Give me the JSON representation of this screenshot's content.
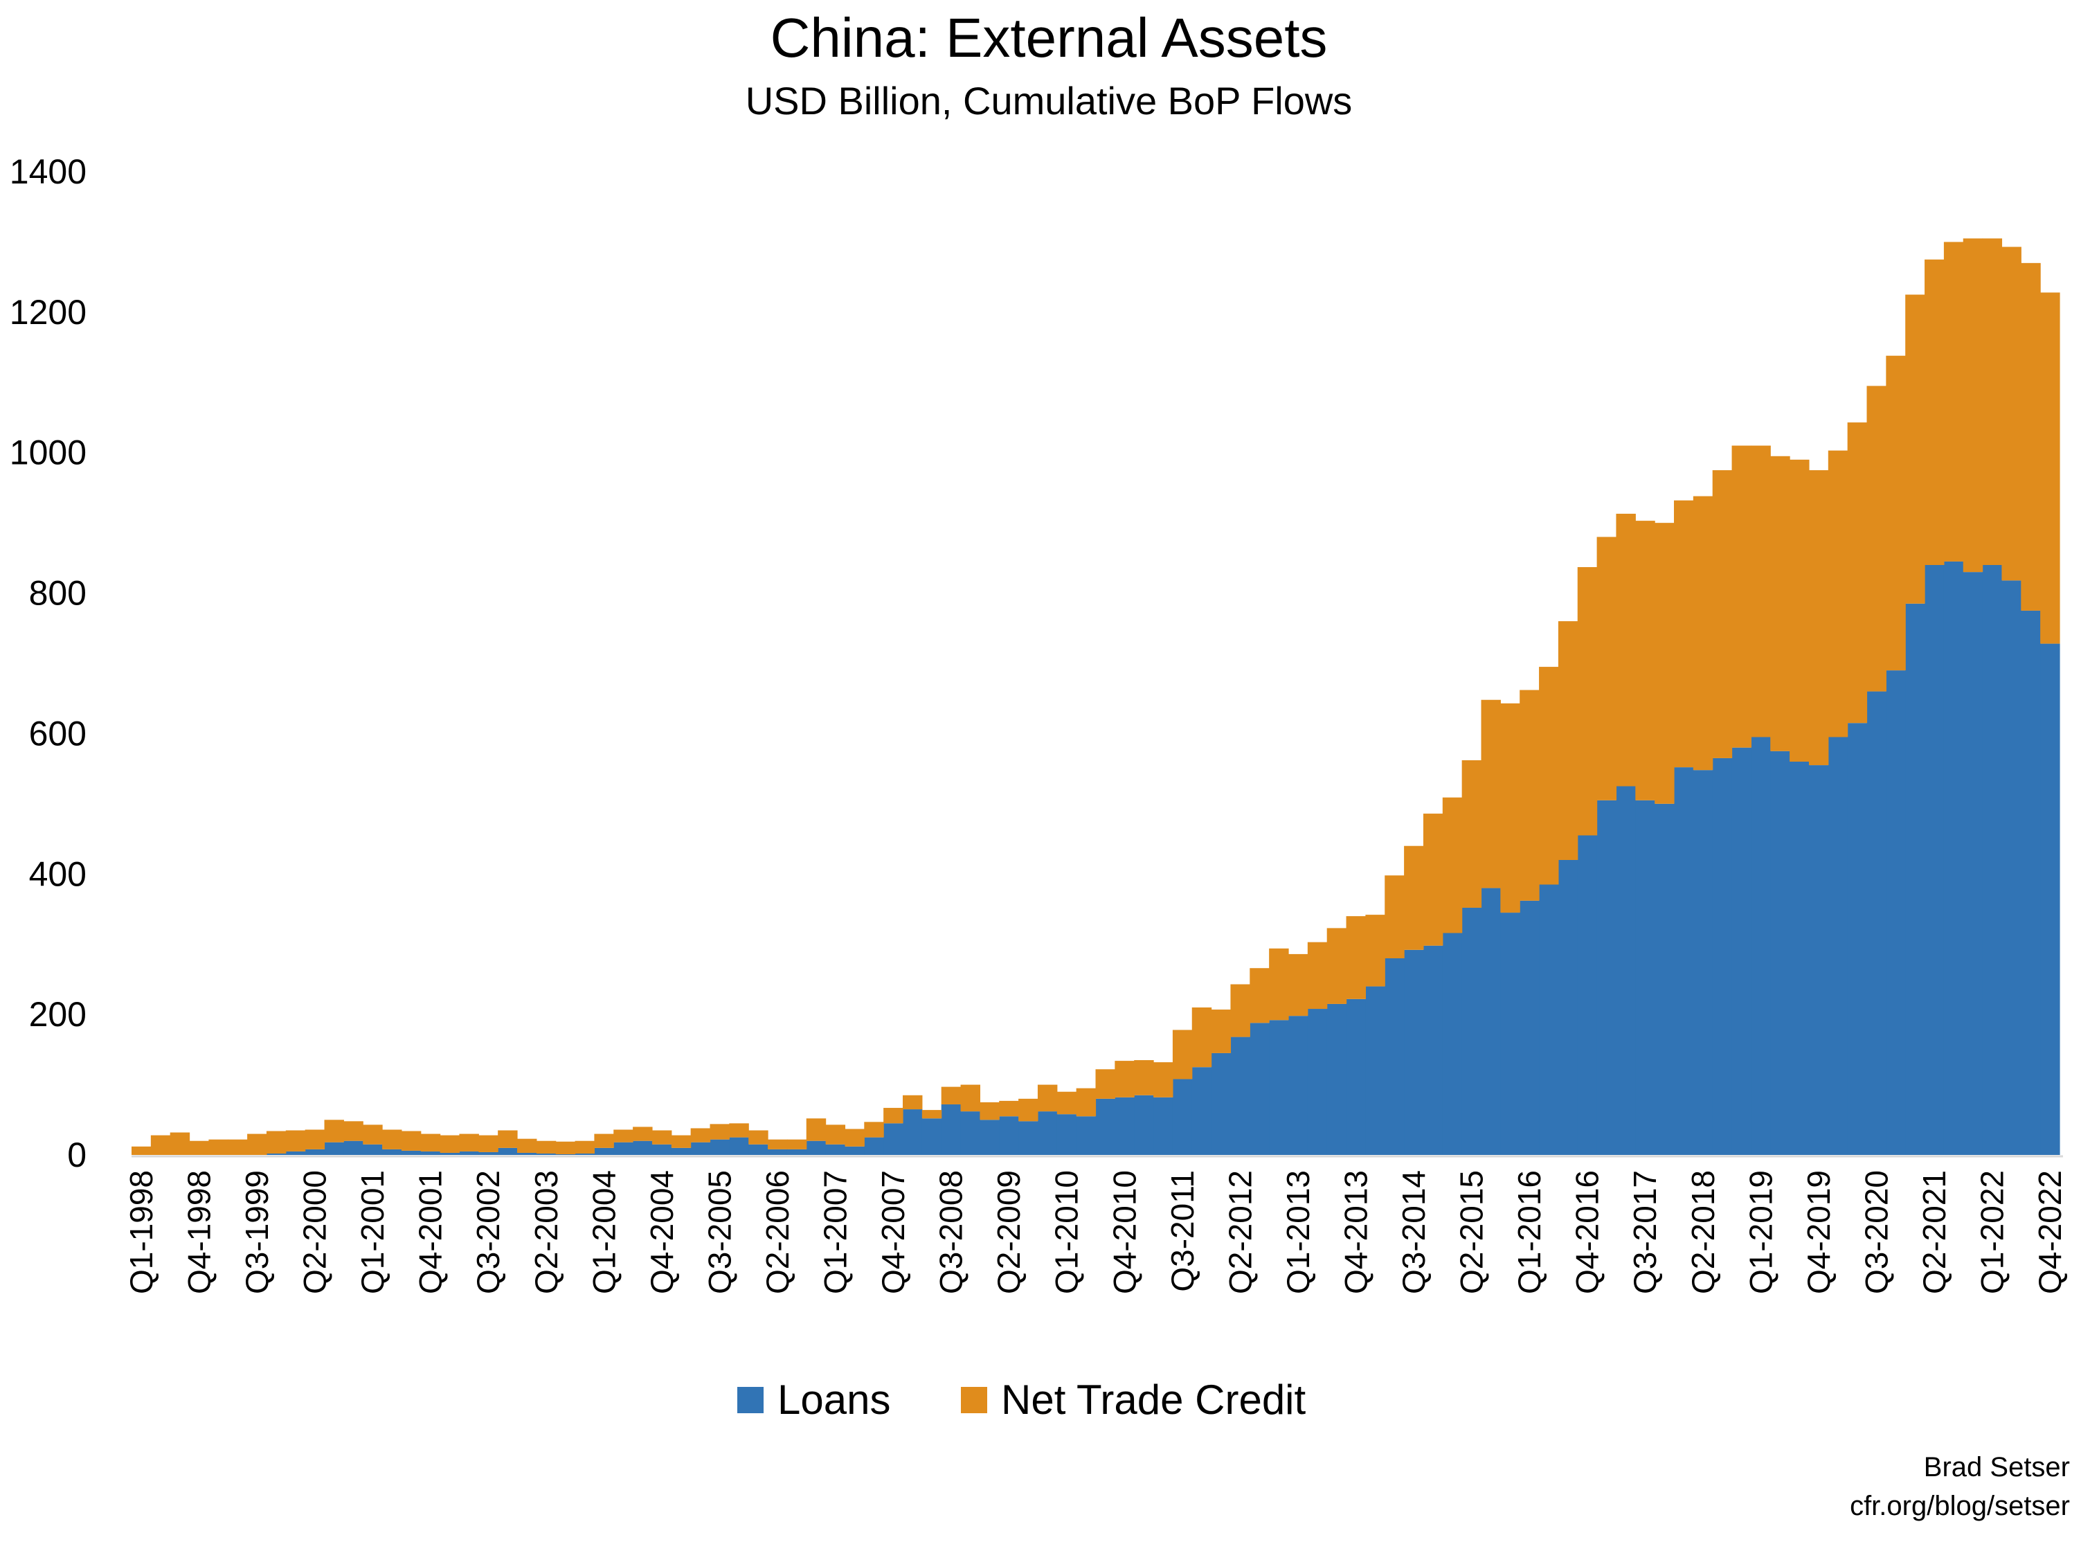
{
  "chart_data": {
    "type": "area",
    "stacked": true,
    "step": true,
    "title": "China: External Assets",
    "subtitle": "USD Billion, Cumulative BoP Flows",
    "ylim": [
      0,
      1400
    ],
    "yticks": [
      0,
      200,
      400,
      600,
      800,
      1000,
      1200,
      1400
    ],
    "grid": false,
    "legend_position": "bottom",
    "x": [
      "Q1-1998",
      "Q2-1998",
      "Q3-1998",
      "Q4-1998",
      "Q1-1999",
      "Q2-1999",
      "Q3-1999",
      "Q4-1999",
      "Q1-2000",
      "Q2-2000",
      "Q3-2000",
      "Q4-2000",
      "Q1-2001",
      "Q2-2001",
      "Q3-2001",
      "Q4-2001",
      "Q1-2002",
      "Q2-2002",
      "Q3-2002",
      "Q4-2002",
      "Q1-2003",
      "Q2-2003",
      "Q3-2003",
      "Q4-2003",
      "Q1-2004",
      "Q2-2004",
      "Q3-2004",
      "Q4-2004",
      "Q1-2005",
      "Q2-2005",
      "Q3-2005",
      "Q4-2005",
      "Q1-2006",
      "Q2-2006",
      "Q3-2006",
      "Q4-2006",
      "Q1-2007",
      "Q2-2007",
      "Q3-2007",
      "Q4-2007",
      "Q1-2008",
      "Q2-2008",
      "Q3-2008",
      "Q4-2008",
      "Q1-2009",
      "Q2-2009",
      "Q3-2009",
      "Q4-2009",
      "Q1-2010",
      "Q2-2010",
      "Q3-2010",
      "Q4-2010",
      "Q1-2011",
      "Q2-2011",
      "Q3-2011",
      "Q4-2011",
      "Q1-2012",
      "Q2-2012",
      "Q3-2012",
      "Q4-2012",
      "Q1-2013",
      "Q2-2013",
      "Q3-2013",
      "Q4-2013",
      "Q1-2014",
      "Q2-2014",
      "Q3-2014",
      "Q4-2014",
      "Q1-2015",
      "Q2-2015",
      "Q3-2015",
      "Q4-2015",
      "Q1-2016",
      "Q2-2016",
      "Q3-2016",
      "Q4-2016",
      "Q1-2017",
      "Q2-2017",
      "Q3-2017",
      "Q4-2017",
      "Q1-2018",
      "Q2-2018",
      "Q3-2018",
      "Q4-2018",
      "Q1-2019",
      "Q2-2019",
      "Q3-2019",
      "Q4-2019",
      "Q1-2020",
      "Q2-2020",
      "Q3-2020",
      "Q4-2020",
      "Q1-2021",
      "Q2-2021",
      "Q3-2021",
      "Q4-2021",
      "Q1-2022",
      "Q2-2022",
      "Q3-2022",
      "Q4-2022"
    ],
    "tick_labels": [
      "Q1-1998",
      "Q4-1998",
      "Q3-1999",
      "Q2-2000",
      "Q1-2001",
      "Q4-2001",
      "Q3-2002",
      "Q2-2003",
      "Q1-2004",
      "Q4-2004",
      "Q3-2005",
      "Q2-2006",
      "Q1-2007",
      "Q4-2007",
      "Q3-2008",
      "Q2-2009",
      "Q1-2010",
      "Q4-2010",
      "Q3-2011",
      "Q2-2012",
      "Q1-2013",
      "Q4-2013",
      "Q3-2014",
      "Q2-2015",
      "Q1-2016",
      "Q4-2016",
      "Q3-2017",
      "Q2-2018",
      "Q1-2019",
      "Q4-2019",
      "Q3-2020",
      "Q2-2021",
      "Q1-2022",
      "Q4-2022"
    ],
    "series": [
      {
        "name": "Loans",
        "color": "#3174b5",
        "values": [
          0,
          0,
          0,
          0,
          0,
          0,
          0,
          2,
          5,
          8,
          18,
          20,
          15,
          8,
          6,
          5,
          3,
          5,
          4,
          10,
          3,
          2,
          1,
          2,
          10,
          18,
          20,
          15,
          10,
          18,
          22,
          25,
          15,
          8,
          8,
          20,
          15,
          12,
          25,
          45,
          65,
          52,
          72,
          62,
          50,
          55,
          48,
          62,
          58,
          55,
          80,
          82,
          85,
          82,
          108,
          125,
          145,
          168,
          188,
          192,
          198,
          208,
          215,
          222,
          240,
          280,
          292,
          298,
          316,
          352,
          380,
          345,
          362,
          385,
          420,
          455,
          505,
          525,
          505,
          500,
          552,
          548,
          565,
          580,
          595,
          575,
          560,
          555,
          595,
          615,
          660,
          690,
          785,
          840,
          845,
          830,
          840,
          818,
          775,
          728
        ]
      },
      {
        "name": "Net Trade Credit",
        "color": "#e08c1c",
        "values": [
          12,
          28,
          32,
          20,
          22,
          22,
          30,
          32,
          30,
          28,
          32,
          28,
          28,
          28,
          28,
          25,
          25,
          25,
          24,
          25,
          20,
          18,
          18,
          18,
          20,
          18,
          20,
          20,
          18,
          20,
          22,
          20,
          20,
          14,
          14,
          32,
          28,
          25,
          22,
          22,
          20,
          12,
          25,
          38,
          25,
          22,
          32,
          38,
          32,
          40,
          42,
          52,
          50,
          50,
          70,
          85,
          62,
          75,
          78,
          102,
          88,
          95,
          108,
          118,
          102,
          118,
          148,
          188,
          193,
          210,
          268,
          298,
          300,
          310,
          340,
          382,
          375,
          388,
          398,
          400,
          380,
          390,
          410,
          430,
          415,
          420,
          430,
          420,
          408,
          428,
          435,
          448,
          440,
          435,
          455,
          475,
          465,
          475,
          495,
          500
        ]
      }
    ],
    "xlabel": "",
    "ylabel": ""
  },
  "credits": {
    "author": "Brad Setser",
    "site": "cfr.org/blog/setser"
  }
}
